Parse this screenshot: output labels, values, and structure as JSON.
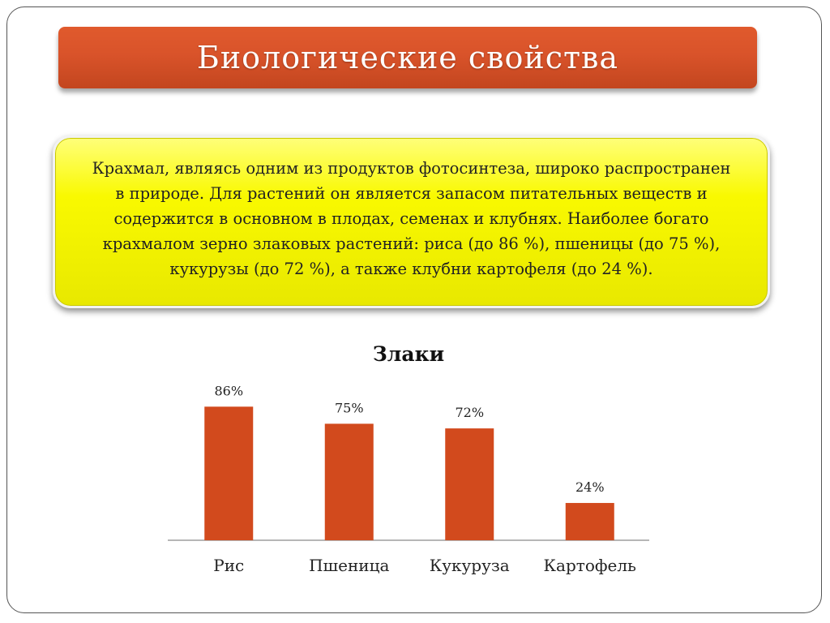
{
  "slide": {
    "title": "Биологические свойства",
    "info_text": "Крахмал, являясь одним из продуктов фотосинтеза, широко распространен в природе. Для растений он является запасом питательных веществ и содержится в основном в плодах, семенах и клубнях. Наиболее богато крахмалом зерно злаковых растений: риса (до 86 %), пшеницы (до 75 %), кукурузы (до 72 %), а также клубни картофеля (до 24 %)."
  },
  "colors": {
    "title_bar": "#d9532a",
    "info_box": "#f9f900",
    "bar": "#d24a1d"
  },
  "chart_data": {
    "type": "bar",
    "title": "Злаки",
    "categories": [
      "Рис",
      "Пшеница",
      "Кукуруза",
      "Картофель"
    ],
    "values": [
      86,
      75,
      72,
      24
    ],
    "data_labels": [
      "86%",
      "75%",
      "72%",
      "24%"
    ],
    "xlabel": "",
    "ylabel": "",
    "ylim": [
      0,
      100
    ],
    "grid": false,
    "legend": "none",
    "y_axis_visible": false
  }
}
